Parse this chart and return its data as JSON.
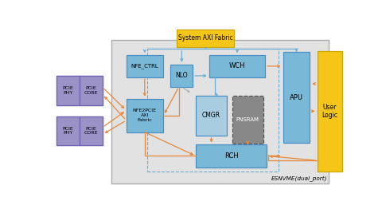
{
  "fig_width": 4.8,
  "fig_height": 2.72,
  "dpi": 100,
  "bg": "#ffffff",
  "oc": "#e8883a",
  "bc": "#6aadd5",
  "gc": "#b0b0b0",
  "main_bg": "#e2e2e2",
  "main_ec": "#aaaaaa",
  "bfc": "#7ab8d8",
  "bec": "#4a90c4",
  "blfc": "#a8cce0",
  "pfc": "#9b93c8",
  "pec": "#7060b0",
  "yfc": "#f5c518",
  "yec": "#c9a800",
  "gfc": "#888888",
  "gec": "#555555",
  "main": [
    0.215,
    0.06,
    0.735,
    0.855
  ],
  "dashed": [
    0.335,
    0.13,
    0.445,
    0.735
  ],
  "sys_axi": [
    0.435,
    0.875,
    0.195,
    0.105
  ],
  "user_logic": [
    0.91,
    0.13,
    0.085,
    0.72
  ],
  "nfe_ctrl": [
    0.265,
    0.695,
    0.125,
    0.13
  ],
  "nlo": [
    0.415,
    0.635,
    0.075,
    0.135
  ],
  "wch": [
    0.545,
    0.695,
    0.19,
    0.13
  ],
  "apu": [
    0.795,
    0.3,
    0.09,
    0.545
  ],
  "nfe2pcie": [
    0.265,
    0.365,
    0.125,
    0.2
  ],
  "cmgr": [
    0.5,
    0.345,
    0.105,
    0.24
  ],
  "pnsram": [
    0.623,
    0.295,
    0.105,
    0.29
  ],
  "rch": [
    0.5,
    0.155,
    0.24,
    0.135
  ],
  "pcie1": [
    0.03,
    0.525,
    0.155,
    0.175
  ],
  "pcie1_mid": 0.1075,
  "pcie2": [
    0.03,
    0.285,
    0.155,
    0.175
  ],
  "pcie2_mid": 0.1075
}
